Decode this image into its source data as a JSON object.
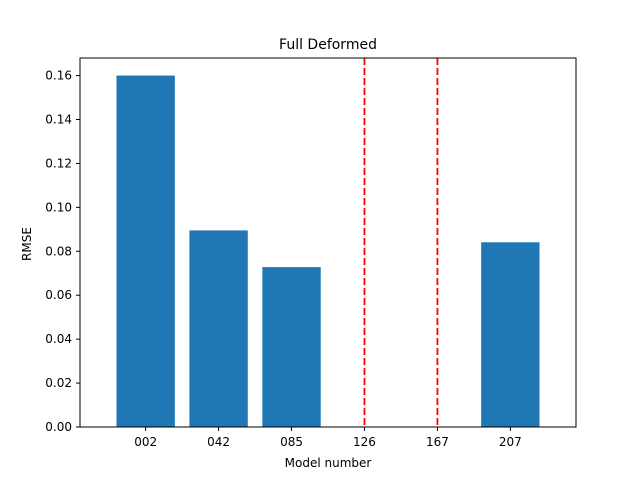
{
  "chart_data": {
    "type": "bar",
    "title": "Full Deformed",
    "xlabel": "Model number",
    "ylabel": "RMSE",
    "categories": [
      "002",
      "042",
      "085",
      "126",
      "167",
      "207"
    ],
    "values": [
      0.16,
      0.0895,
      0.0728,
      null,
      null,
      0.0841
    ],
    "missing_marker": {
      "categories": [
        "126",
        "167"
      ],
      "style": "dashed-vertical-line",
      "color": "#ff0000"
    },
    "ylim": [
      0,
      0.168
    ],
    "yticks": [
      0.0,
      0.02,
      0.04,
      0.06,
      0.08,
      0.1,
      0.12,
      0.14,
      0.16
    ],
    "ytick_labels": [
      "0.00",
      "0.02",
      "0.04",
      "0.06",
      "0.08",
      "0.10",
      "0.12",
      "0.14",
      "0.16"
    ],
    "bar_color": "#1f77b4",
    "grid": false,
    "legend": "none"
  }
}
